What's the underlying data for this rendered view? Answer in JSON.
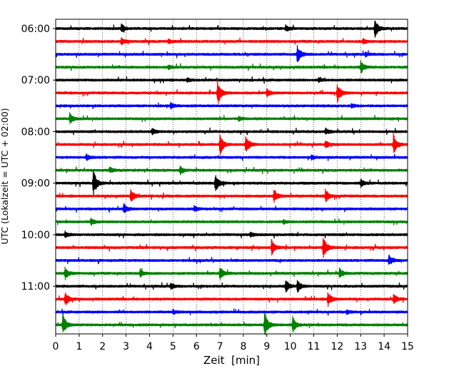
{
  "chart_data": {
    "type": "line",
    "title": "",
    "xlabel": "Zeit  [min]",
    "ylabel": "UTC (Lokalzeit = UTC + 02:00)",
    "xlim": [
      0,
      15
    ],
    "x_ticks": [
      0,
      1,
      2,
      3,
      4,
      5,
      6,
      7,
      8,
      9,
      10,
      11,
      12,
      13,
      14,
      15
    ],
    "y_tick_labels": [
      "06:00",
      "07:00",
      "08:00",
      "09:00",
      "10:00",
      "11:00"
    ],
    "minutes_per_trace": 15,
    "start_time": "06:00",
    "grid": "vertical dotted",
    "trace_colors": [
      "#000000",
      "#ff0000",
      "#0000ff",
      "#008000"
    ],
    "series": [
      {
        "start": "06:00",
        "color": "#000000",
        "events": [
          {
            "t": 2.8,
            "amp": 0.4
          },
          {
            "t": 9.8,
            "amp": 0.3
          },
          {
            "t": 13.6,
            "amp": 0.9
          }
        ]
      },
      {
        "start": "06:15",
        "color": "#ff0000",
        "events": [
          {
            "t": 2.8,
            "amp": 0.4
          },
          {
            "t": 4.8,
            "amp": 0.2
          },
          {
            "t": 13.1,
            "amp": 0.3
          }
        ]
      },
      {
        "start": "06:30",
        "color": "#0000ff",
        "events": [
          {
            "t": 10.3,
            "amp": 0.9
          },
          {
            "t": 13.2,
            "amp": 0.2
          }
        ]
      },
      {
        "start": "06:45",
        "color": "#008000",
        "events": [
          {
            "t": 4.8,
            "amp": 0.2
          },
          {
            "t": 13.0,
            "amp": 0.6
          }
        ]
      },
      {
        "start": "07:00",
        "color": "#000000",
        "events": [
          {
            "t": 5.6,
            "amp": 0.2
          },
          {
            "t": 11.2,
            "amp": 0.2
          }
        ]
      },
      {
        "start": "07:15",
        "color": "#ff0000",
        "events": [
          {
            "t": 6.9,
            "amp": 1.3
          },
          {
            "t": 9.0,
            "amp": 0.4
          },
          {
            "t": 12.0,
            "amp": 1.0
          }
        ]
      },
      {
        "start": "07:30",
        "color": "#0000ff",
        "events": [
          {
            "t": 4.9,
            "amp": 0.3
          },
          {
            "t": 12.6,
            "amp": 0.2
          }
        ]
      },
      {
        "start": "07:45",
        "color": "#008000",
        "events": [
          {
            "t": 0.6,
            "amp": 0.5
          },
          {
            "t": 7.8,
            "amp": 0.2
          }
        ]
      },
      {
        "start": "08:00",
        "color": "#000000",
        "events": [
          {
            "t": 4.1,
            "amp": 0.3
          },
          {
            "t": 11.5,
            "amp": 0.3
          }
        ]
      },
      {
        "start": "08:15",
        "color": "#ff0000",
        "events": [
          {
            "t": 7.0,
            "amp": 1.1
          },
          {
            "t": 8.1,
            "amp": 1.0
          },
          {
            "t": 11.5,
            "amp": 0.4
          },
          {
            "t": 14.4,
            "amp": 1.0
          }
        ]
      },
      {
        "start": "08:30",
        "color": "#0000ff",
        "events": [
          {
            "t": 1.3,
            "amp": 0.3
          },
          {
            "t": 10.9,
            "amp": 0.2
          }
        ]
      },
      {
        "start": "08:45",
        "color": "#008000",
        "events": [
          {
            "t": 2.3,
            "amp": 0.3
          },
          {
            "t": 5.3,
            "amp": 0.4
          }
        ]
      },
      {
        "start": "09:00",
        "color": "#000000",
        "events": [
          {
            "t": 1.6,
            "amp": 1.4
          },
          {
            "t": 6.8,
            "amp": 0.9
          },
          {
            "t": 13.0,
            "amp": 0.4
          }
        ]
      },
      {
        "start": "09:15",
        "color": "#ff0000",
        "events": [
          {
            "t": 3.2,
            "amp": 0.7
          },
          {
            "t": 9.3,
            "amp": 0.7
          },
          {
            "t": 11.5,
            "amp": 0.7
          }
        ]
      },
      {
        "start": "09:30",
        "color": "#0000ff",
        "events": [
          {
            "t": 2.9,
            "amp": 0.5
          },
          {
            "t": 5.9,
            "amp": 0.3
          }
        ]
      },
      {
        "start": "09:45",
        "color": "#008000",
        "events": [
          {
            "t": 1.5,
            "amp": 0.3
          },
          {
            "t": 9.7,
            "amp": 0.2
          }
        ]
      },
      {
        "start": "10:00",
        "color": "#000000",
        "events": [
          {
            "t": 0.4,
            "amp": 0.3
          },
          {
            "t": 8.3,
            "amp": 0.2
          }
        ]
      },
      {
        "start": "10:15",
        "color": "#ff0000",
        "events": [
          {
            "t": 9.2,
            "amp": 0.8
          },
          {
            "t": 11.4,
            "amp": 1.2
          }
        ]
      },
      {
        "start": "10:30",
        "color": "#0000ff",
        "events": [
          {
            "t": 14.2,
            "amp": 0.6
          }
        ]
      },
      {
        "start": "10:45",
        "color": "#008000",
        "events": [
          {
            "t": 0.4,
            "amp": 0.6
          },
          {
            "t": 3.6,
            "amp": 0.4
          },
          {
            "t": 7.0,
            "amp": 0.7
          },
          {
            "t": 12.1,
            "amp": 0.5
          }
        ]
      },
      {
        "start": "11:00",
        "color": "#000000",
        "events": [
          {
            "t": 4.9,
            "amp": 0.3
          },
          {
            "t": 9.8,
            "amp": 0.7
          },
          {
            "t": 10.3,
            "amp": 0.6
          }
        ]
      },
      {
        "start": "11:15",
        "color": "#ff0000",
        "events": [
          {
            "t": 0.4,
            "amp": 0.7
          },
          {
            "t": 11.6,
            "amp": 0.8
          },
          {
            "t": 14.4,
            "amp": 0.5
          }
        ]
      },
      {
        "start": "11:30",
        "color": "#0000ff",
        "events": [
          {
            "t": 5.0,
            "amp": 0.2
          },
          {
            "t": 12.4,
            "amp": 0.2
          }
        ]
      },
      {
        "start": "11:45",
        "color": "#008000",
        "events": [
          {
            "t": 0.3,
            "amp": 1.1
          },
          {
            "t": 8.9,
            "amp": 1.3
          },
          {
            "t": 10.1,
            "amp": 0.8
          }
        ]
      }
    ]
  }
}
